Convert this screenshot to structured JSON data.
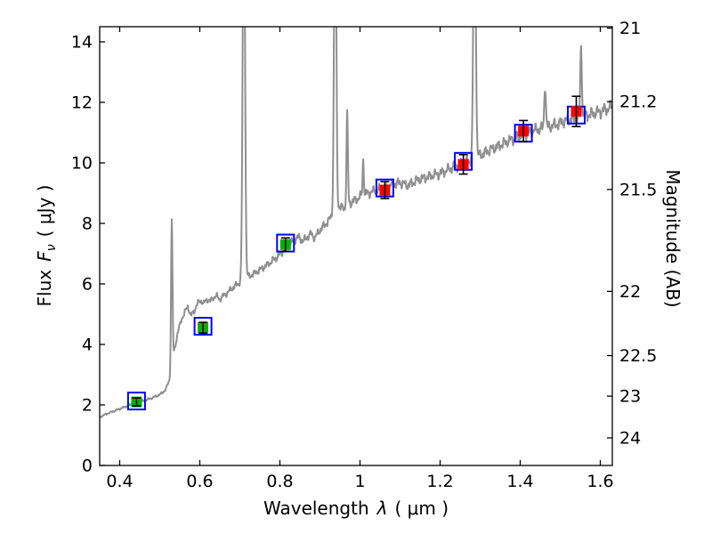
{
  "chart_data": {
    "type": "line",
    "title": "",
    "xlabel_parts": {
      "name": "Wavelength",
      "symbol": "λ",
      "unit": "( μm )"
    },
    "ylabel_left_parts": {
      "name": "Flux",
      "symbol": "F",
      "subscript": "ν",
      "unit": "( μJy )"
    },
    "ylabel_right": "Magnitude (AB)",
    "x_range": [
      0.35,
      1.63
    ],
    "y_range": [
      0,
      14.5
    ],
    "x_ticks": [
      0.4,
      0.6,
      0.8,
      1.0,
      1.2,
      1.4,
      1.6
    ],
    "x_tick_labels": [
      "0.4",
      "0.6",
      "0.8",
      "1",
      "1.2",
      "1.4",
      "1.6"
    ],
    "y_left_ticks": [
      0,
      2,
      4,
      6,
      8,
      10,
      12,
      14
    ],
    "y_left_tick_labels": [
      "0",
      "2",
      "4",
      "6",
      "8",
      "10",
      "12",
      "14"
    ],
    "y_right_ticks": [
      21,
      21.2,
      21.5,
      22,
      22.5,
      23,
      24
    ],
    "y_right_tick_labels": [
      "21",
      "21.2",
      "21.5",
      "22",
      "22.5",
      "23",
      "24"
    ],
    "mag_flux_zeropoint_ab": 23.9,
    "grid": false,
    "legend": false,
    "colors": {
      "spectrum": "#8f8f8f",
      "model_square": "#0000ff",
      "errorbar": "#000000",
      "frame": "#000000",
      "optical_point": "#00b200",
      "infrared_point": "#ff0000"
    },
    "spectrum": {
      "continuum_points": [
        [
          0.35,
          1.6
        ],
        [
          0.37,
          1.72
        ],
        [
          0.39,
          1.82
        ],
        [
          0.41,
          1.92
        ],
        [
          0.43,
          2.02
        ],
        [
          0.45,
          2.1
        ],
        [
          0.47,
          2.18
        ],
        [
          0.49,
          2.28
        ],
        [
          0.505,
          2.38
        ],
        [
          0.515,
          2.52
        ],
        [
          0.525,
          2.85
        ],
        [
          0.535,
          3.7
        ],
        [
          0.545,
          4.4
        ],
        [
          0.555,
          4.85
        ],
        [
          0.562,
          5.05
        ],
        [
          0.57,
          5.25
        ],
        [
          0.578,
          4.95
        ],
        [
          0.586,
          5.1
        ],
        [
          0.594,
          5.35
        ],
        [
          0.602,
          5.45
        ],
        [
          0.61,
          5.35
        ],
        [
          0.618,
          5.5
        ],
        [
          0.626,
          5.42
        ],
        [
          0.634,
          5.55
        ],
        [
          0.642,
          5.6
        ],
        [
          0.65,
          5.5
        ],
        [
          0.66,
          5.62
        ],
        [
          0.67,
          5.72
        ],
        [
          0.68,
          5.85
        ],
        [
          0.69,
          5.95
        ],
        [
          0.7,
          6.05
        ],
        [
          0.715,
          6.2
        ],
        [
          0.73,
          6.3
        ],
        [
          0.745,
          6.42
        ],
        [
          0.76,
          6.55
        ],
        [
          0.775,
          6.7
        ],
        [
          0.79,
          6.85
        ],
        [
          0.805,
          7.05
        ],
        [
          0.82,
          7.25
        ],
        [
          0.835,
          7.45
        ],
        [
          0.848,
          7.55
        ],
        [
          0.858,
          7.4
        ],
        [
          0.868,
          7.55
        ],
        [
          0.878,
          7.65
        ],
        [
          0.888,
          7.52
        ],
        [
          0.898,
          7.75
        ],
        [
          0.91,
          7.92
        ],
        [
          0.922,
          8.1
        ],
        [
          0.935,
          8.35
        ],
        [
          0.948,
          8.55
        ],
        [
          0.96,
          8.5
        ],
        [
          0.972,
          8.65
        ],
        [
          0.985,
          8.75
        ],
        [
          1.0,
          8.88
        ],
        [
          1.02,
          9.0
        ],
        [
          1.04,
          9.1
        ],
        [
          1.06,
          9.15
        ],
        [
          1.08,
          9.28
        ],
        [
          1.1,
          9.35
        ],
        [
          1.12,
          9.25
        ],
        [
          1.14,
          9.42
        ],
        [
          1.16,
          9.5
        ],
        [
          1.18,
          9.58
        ],
        [
          1.2,
          9.65
        ],
        [
          1.22,
          9.78
        ],
        [
          1.24,
          9.9
        ],
        [
          1.26,
          10.0
        ],
        [
          1.28,
          10.1
        ],
        [
          1.3,
          10.25
        ],
        [
          1.32,
          10.4
        ],
        [
          1.34,
          10.52
        ],
        [
          1.36,
          10.65
        ],
        [
          1.38,
          10.78
        ],
        [
          1.4,
          10.9
        ],
        [
          1.42,
          11.0
        ],
        [
          1.44,
          11.1
        ],
        [
          1.46,
          11.15
        ],
        [
          1.48,
          11.22
        ],
        [
          1.5,
          11.32
        ],
        [
          1.52,
          11.42
        ],
        [
          1.54,
          11.5
        ],
        [
          1.56,
          11.56
        ],
        [
          1.58,
          11.62
        ],
        [
          1.6,
          11.7
        ],
        [
          1.63,
          11.85
        ]
      ],
      "emission_lines": [
        {
          "center": 0.53,
          "peak_flux": 8.1,
          "sigma": 0.0025
        },
        {
          "center": 0.71,
          "peak_flux": 20.0,
          "sigma": 0.004
        },
        {
          "center": 0.938,
          "peak_flux": 20.0,
          "sigma": 0.0038
        },
        {
          "center": 0.968,
          "peak_flux": 11.6,
          "sigma": 0.0025
        },
        {
          "center": 1.008,
          "peak_flux": 10.1,
          "sigma": 0.0022
        },
        {
          "center": 1.286,
          "peak_flux": 20.0,
          "sigma": 0.004
        },
        {
          "center": 1.462,
          "peak_flux": 12.6,
          "sigma": 0.0028
        },
        {
          "center": 1.552,
          "peak_flux": 13.8,
          "sigma": 0.0028
        }
      ]
    },
    "photometry": {
      "observed": [
        {
          "wavelength": 0.442,
          "flux": 2.1,
          "error": 0.13,
          "band": "optical"
        },
        {
          "wavelength": 0.608,
          "flux": 4.55,
          "error": 0.18,
          "band": "optical"
        },
        {
          "wavelength": 0.814,
          "flux": 7.3,
          "error": 0.22,
          "band": "optical"
        },
        {
          "wavelength": 1.062,
          "flux": 9.1,
          "error": 0.28,
          "band": "infrared"
        },
        {
          "wavelength": 1.258,
          "flux": 9.95,
          "error": 0.32,
          "band": "infrared"
        },
        {
          "wavelength": 1.408,
          "flux": 11.05,
          "error": 0.35,
          "band": "infrared"
        },
        {
          "wavelength": 1.54,
          "flux": 11.7,
          "error": 0.5,
          "band": "infrared"
        }
      ],
      "model": [
        {
          "wavelength": 0.442,
          "flux": 2.13
        },
        {
          "wavelength": 0.608,
          "flux": 4.6
        },
        {
          "wavelength": 0.814,
          "flux": 7.35
        },
        {
          "wavelength": 1.062,
          "flux": 9.17
        },
        {
          "wavelength": 1.258,
          "flux": 10.05
        },
        {
          "wavelength": 1.408,
          "flux": 10.98
        },
        {
          "wavelength": 1.54,
          "flux": 11.58
        }
      ]
    }
  }
}
